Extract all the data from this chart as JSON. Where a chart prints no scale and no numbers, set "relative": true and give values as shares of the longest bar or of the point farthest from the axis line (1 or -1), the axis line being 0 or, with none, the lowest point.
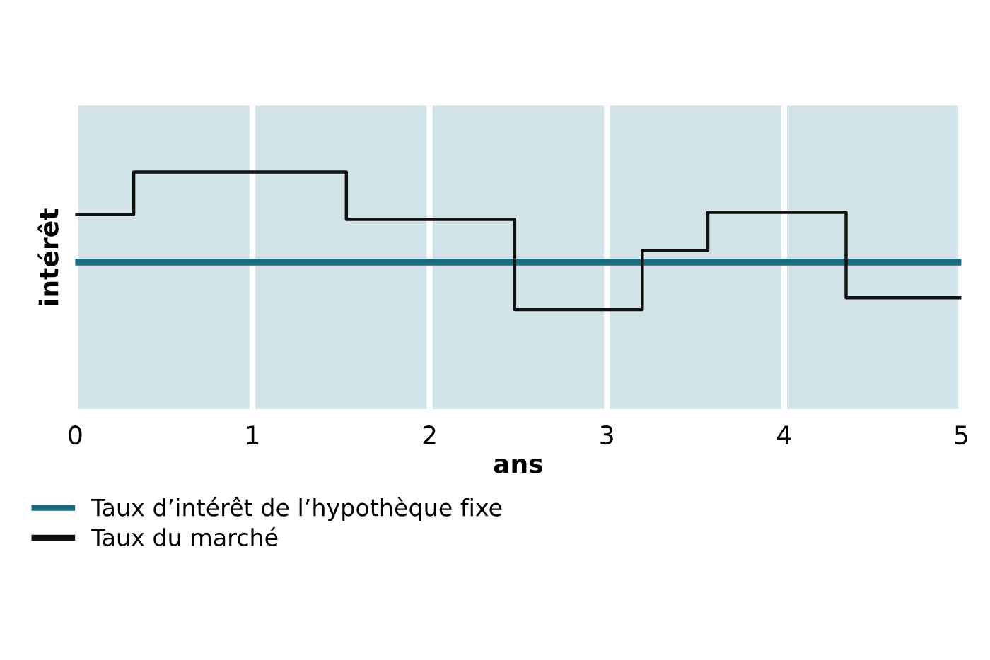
{
  "chart_data": {
    "type": "step",
    "relative": true,
    "xlabel": "ans",
    "ylabel": "intérêt",
    "xlim": [
      0,
      5
    ],
    "xticks": [
      0,
      1,
      2,
      3,
      4,
      5
    ],
    "grid": "x",
    "legend": "bottom",
    "tick_labels": "x",
    "series": [
      {
        "name": "Taux d’intérêt de l’hypothèque fixe",
        "type": "line",
        "color": "#1a6b80",
        "x": [
          0,
          5
        ],
        "values": [
          0.62,
          0.62
        ]
      },
      {
        "name": "Taux du marché",
        "color": "#111111",
        "x": [
          0,
          0.33,
          1.53,
          2.48,
          3.2,
          3.57,
          4.35,
          5
        ],
        "values": [
          0.82,
          1,
          0.8,
          0.42,
          0.67,
          0.83,
          0.47,
          0.47
        ]
      }
    ]
  }
}
